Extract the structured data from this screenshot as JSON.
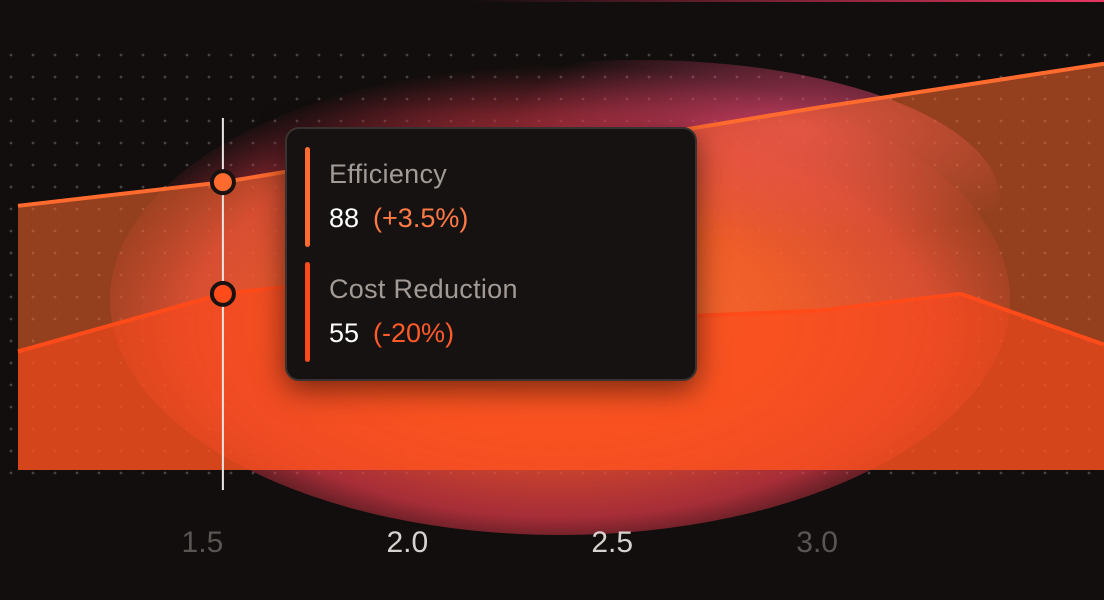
{
  "chart_data": {
    "type": "area",
    "x_ticks": [
      "1.5",
      "2.0",
      "2.5",
      "3.0"
    ],
    "xlim": [
      1.05,
      3.7
    ],
    "ylim": [
      0,
      130
    ],
    "series": [
      {
        "name": "Efficiency",
        "color": "#ff6a2e",
        "x": [
          1.05,
          1.55,
          1.7,
          2.2,
          2.6,
          3.0,
          3.7
        ],
        "values": [
          81,
          88,
          91,
          97,
          102,
          110,
          123
        ]
      },
      {
        "name": "Cost Reduction",
        "color": "#ff4a1a",
        "x": [
          1.05,
          1.55,
          1.7,
          2.0,
          2.16,
          2.35,
          2.6,
          3.0,
          3.35,
          3.7
        ],
        "values": [
          38,
          55,
          57,
          48,
          35,
          43,
          48,
          50,
          55,
          40
        ]
      }
    ],
    "hover": {
      "x": 1.55,
      "items": [
        {
          "name": "Efficiency",
          "value": "88",
          "change": "(+3.5%)",
          "change_color": "#ff7a45",
          "bar_color": "#ff6a2e"
        },
        {
          "name": "Cost Reduction",
          "value": "55",
          "change": "(-20%)",
          "change_color": "#ff5a2a",
          "bar_color": "#ff4a1a"
        }
      ]
    },
    "grid": "dotted"
  },
  "colors": {
    "background": "#120e0d",
    "accent": "#ff6a2e",
    "glow_inner": "#ff5f26",
    "glow_outer": "#e8406a",
    "tick_active": "#d6d2cf",
    "tick_muted": "#5a5553"
  }
}
